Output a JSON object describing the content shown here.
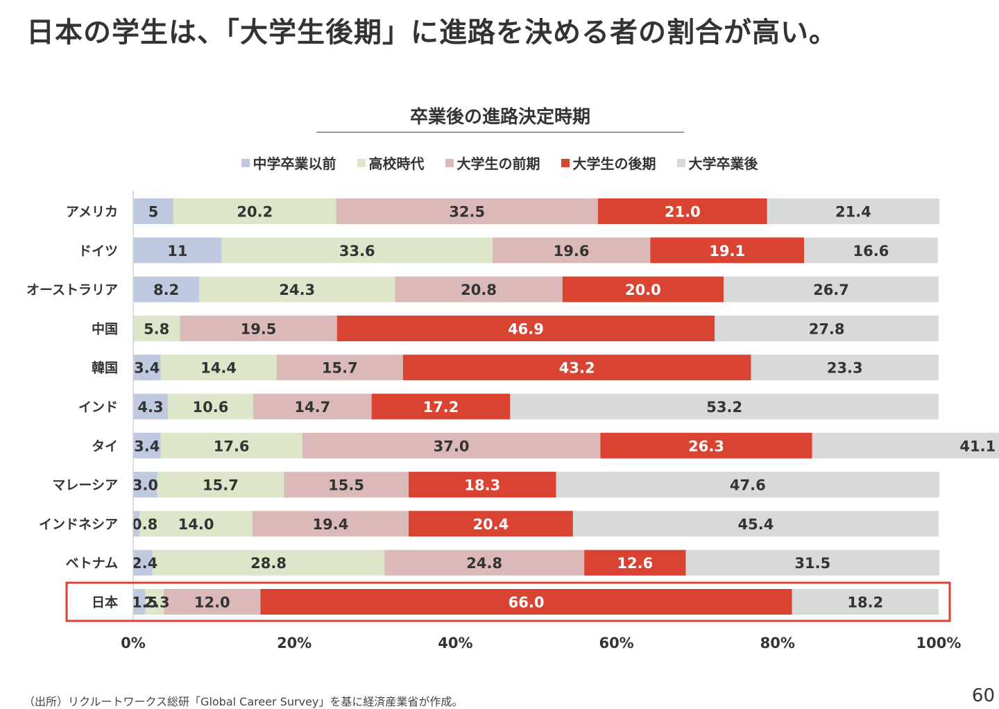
{
  "page": {
    "title": "日本の学生は、「大学生後期」に進路を決める者の割合が高い。",
    "source_note": "（出所）リクルートワークス総研「Global Career Survey」を基に経済産業省が作成。",
    "page_number": "60"
  },
  "chart_data": {
    "type": "bar",
    "orientation": "horizontal",
    "stacked": "100%",
    "title": "卒業後の進路決定時期",
    "xlabel": "",
    "ylabel": "",
    "xlim": [
      0,
      100
    ],
    "x_ticks": [
      "0%",
      "20%",
      "40%",
      "60%",
      "80%",
      "100%"
    ],
    "grid": false,
    "legend_position": "top",
    "categories": [
      "アメリカ",
      "ドイツ",
      "オーストラリア",
      "中国",
      "韓国",
      "インド",
      "タイ",
      "マレーシア",
      "インドネシア",
      "ベトナム",
      "日本"
    ],
    "highlighted_category": "日本",
    "highlight_color": "#d94132",
    "series": [
      {
        "name": "中学卒業以前",
        "color": "#bfc9e0",
        "label_color": "#333333",
        "values": [
          5,
          11,
          8.2,
          null,
          3.4,
          4.3,
          3.4,
          3.0,
          0.8,
          2.4,
          1.5
        ],
        "labels": [
          "5",
          "11",
          "8.2",
          "",
          "3.4",
          "4.3",
          "3.4",
          "3.0",
          "0.8",
          "2.4",
          "1.5"
        ]
      },
      {
        "name": "高校時代",
        "color": "#dde6c8",
        "label_color": "#333333",
        "values": [
          20.2,
          33.6,
          24.3,
          5.8,
          14.4,
          10.6,
          17.6,
          15.7,
          14.0,
          28.8,
          2.3
        ],
        "labels": [
          "20.2",
          "33.6",
          "24.3",
          "5.8",
          "14.4",
          "10.6",
          "17.6",
          "15.7",
          "14.0",
          "28.8",
          "2.3"
        ]
      },
      {
        "name": "大学生の前期",
        "color": "#dbb9b8",
        "label_color": "#333333",
        "values": [
          32.5,
          19.6,
          20.8,
          19.5,
          15.7,
          14.7,
          37.0,
          15.5,
          19.4,
          24.8,
          12.0
        ],
        "labels": [
          "32.5",
          "19.6",
          "20.8",
          "19.5",
          "15.7",
          "14.7",
          "37.0",
          "15.5",
          "19.4",
          "24.8",
          "12.0"
        ]
      },
      {
        "name": "大学生の後期",
        "color": "#d94332",
        "label_color": "#ffffff",
        "values": [
          21.0,
          19.1,
          20.0,
          46.9,
          43.2,
          17.2,
          26.3,
          18.3,
          20.4,
          12.6,
          66.0
        ],
        "labels": [
          "21.0",
          "19.1",
          "20.0",
          "46.9",
          "43.2",
          "17.2",
          "26.3",
          "18.3",
          "20.4",
          "12.6",
          "66.0"
        ]
      },
      {
        "name": "大学卒業後",
        "color": "#d9d9d9",
        "label_color": "#333333",
        "values": [
          21.4,
          16.6,
          26.7,
          27.8,
          23.3,
          53.2,
          41.1,
          47.6,
          45.4,
          31.5,
          18.2
        ],
        "labels": [
          "21.4",
          "16.6",
          "26.7",
          "27.8",
          "23.3",
          "53.2",
          "41.1",
          "47.6",
          "45.4",
          "31.5",
          "18.2"
        ]
      }
    ]
  }
}
